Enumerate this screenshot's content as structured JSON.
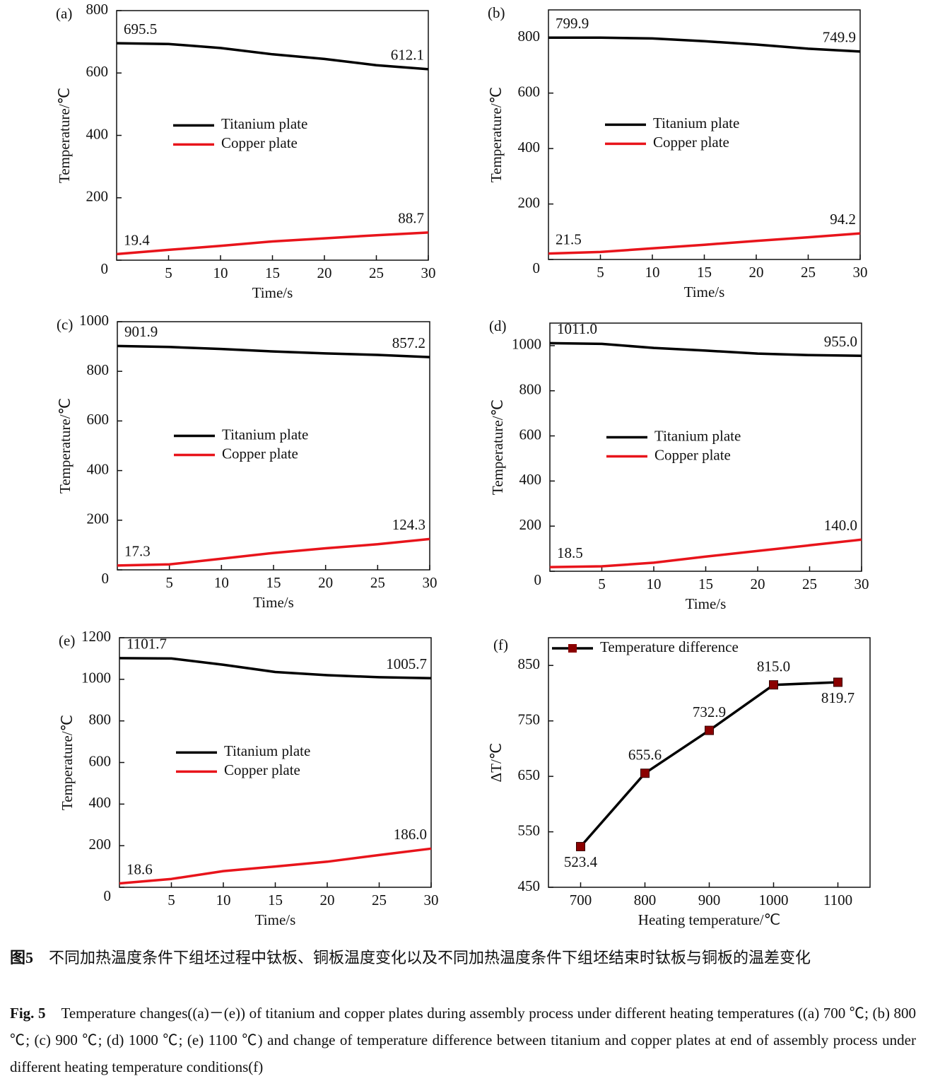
{
  "chart_data": [
    {
      "type": "line",
      "panel": "(a)",
      "x": [
        0,
        5,
        10,
        15,
        20,
        25,
        30
      ],
      "xlim": [
        0,
        30
      ],
      "xticks": [
        5,
        10,
        15,
        20,
        25,
        30
      ],
      "ylim": [
        0,
        800
      ],
      "yticks": [
        0,
        200,
        400,
        600,
        800
      ],
      "xlabel": "Time/s",
      "ylabel": "Temperature/℃",
      "legend": "upper center",
      "series": [
        {
          "name": "Titanium plate",
          "color": "#000000",
          "values": [
            695.5,
            693,
            680,
            660,
            645,
            625,
            612.1
          ],
          "value_labels": [
            "695.5",
            null,
            null,
            null,
            null,
            null,
            "612.1"
          ]
        },
        {
          "name": "Copper plate",
          "color": "#e8141b",
          "values": [
            19.4,
            33,
            46,
            60,
            70,
            80,
            88.7
          ],
          "value_labels": [
            "19.4",
            null,
            null,
            null,
            null,
            null,
            "88.7"
          ]
        }
      ]
    },
    {
      "type": "line",
      "panel": "(b)",
      "x": [
        0,
        5,
        10,
        15,
        20,
        25,
        30
      ],
      "xlim": [
        0,
        30
      ],
      "xticks": [
        5,
        10,
        15,
        20,
        25,
        30
      ],
      "ylim": [
        0,
        900
      ],
      "yticks": [
        0,
        200,
        400,
        600,
        800
      ],
      "xlabel": "Time/s",
      "ylabel": "Temperature/℃",
      "legend": "upper center",
      "series": [
        {
          "name": "Titanium plate",
          "color": "#000000",
          "values": [
            799.9,
            800,
            797,
            787,
            775,
            760,
            749.9
          ],
          "value_labels": [
            "799.9",
            null,
            null,
            null,
            null,
            null,
            "749.9"
          ]
        },
        {
          "name": "Copper plate",
          "color": "#e8141b",
          "values": [
            21.5,
            27,
            40,
            53,
            67,
            80,
            94.2
          ],
          "value_labels": [
            "21.5",
            null,
            null,
            null,
            null,
            null,
            "94.2"
          ]
        }
      ]
    },
    {
      "type": "line",
      "panel": "(c)",
      "x": [
        0,
        5,
        10,
        15,
        20,
        25,
        30
      ],
      "xlim": [
        0,
        30
      ],
      "xticks": [
        5,
        10,
        15,
        20,
        25,
        30
      ],
      "ylim": [
        0,
        1000
      ],
      "yticks": [
        0,
        200,
        400,
        600,
        800,
        1000
      ],
      "xlabel": "Time/s",
      "ylabel": "Temperature/℃",
      "legend": "upper center",
      "series": [
        {
          "name": "Titanium plate",
          "color": "#000000",
          "values": [
            901.9,
            898,
            890,
            880,
            872,
            866,
            857.2
          ],
          "value_labels": [
            "901.9",
            null,
            null,
            null,
            null,
            null,
            "857.2"
          ]
        },
        {
          "name": "Copper plate",
          "color": "#e8141b",
          "values": [
            17.3,
            22,
            45,
            68,
            87,
            103,
            124.3
          ],
          "value_labels": [
            "17.3",
            null,
            null,
            null,
            null,
            null,
            "124.3"
          ]
        }
      ]
    },
    {
      "type": "line",
      "panel": "(d)",
      "x": [
        0,
        5,
        10,
        15,
        20,
        25,
        30
      ],
      "xlim": [
        0,
        30
      ],
      "xticks": [
        5,
        10,
        15,
        20,
        25,
        30
      ],
      "ylim": [
        0,
        1100
      ],
      "yticks": [
        0,
        200,
        400,
        600,
        800,
        1000
      ],
      "xlabel": "Time/s",
      "ylabel": "Temperature/℃",
      "legend": "upper center",
      "series": [
        {
          "name": "Titanium plate",
          "color": "#000000",
          "values": [
            1011.0,
            1008,
            990,
            978,
            965,
            958,
            955.0
          ],
          "value_labels": [
            "1011.0",
            null,
            null,
            null,
            null,
            null,
            "955.0"
          ]
        },
        {
          "name": "Copper plate",
          "color": "#e8141b",
          "values": [
            18.5,
            22,
            38,
            65,
            90,
            115,
            140.0
          ],
          "value_labels": [
            "18.5",
            null,
            null,
            null,
            null,
            null,
            "140.0"
          ]
        }
      ]
    },
    {
      "type": "line",
      "panel": "(e)",
      "x": [
        0,
        5,
        10,
        15,
        20,
        25,
        30
      ],
      "xlim": [
        0,
        30
      ],
      "xticks": [
        5,
        10,
        15,
        20,
        25,
        30
      ],
      "ylim": [
        0,
        1200
      ],
      "yticks": [
        0,
        200,
        400,
        600,
        800,
        1000,
        1200
      ],
      "xlabel": "Time/s",
      "ylabel": "Temperature/℃",
      "legend": "upper center",
      "series": [
        {
          "name": "Titanium plate",
          "color": "#000000",
          "values": [
            1101.7,
            1100,
            1070,
            1035,
            1020,
            1010,
            1005.7
          ],
          "value_labels": [
            "1101.7",
            null,
            null,
            null,
            null,
            null,
            "1005.7"
          ]
        },
        {
          "name": "Copper plate",
          "color": "#e8141b",
          "values": [
            18.6,
            40,
            78,
            100,
            123,
            155,
            186.0
          ],
          "value_labels": [
            "18.6",
            null,
            null,
            null,
            null,
            null,
            "186.0"
          ]
        }
      ]
    },
    {
      "type": "line",
      "panel": "(f)",
      "x": [
        700,
        800,
        900,
        1000,
        1100
      ],
      "xlim": [
        650,
        1150
      ],
      "xticks": [
        700,
        800,
        900,
        1000,
        1100
      ],
      "ylim": [
        450,
        900
      ],
      "yticks": [
        450,
        550,
        650,
        750,
        850
      ],
      "xlabel": "Heating temperature/℃",
      "ylabel": "ΔT/℃",
      "legend": "upper left",
      "marker": "square",
      "marker_color": "#8b0000",
      "series": [
        {
          "name": "Temperature difference",
          "color": "#000000",
          "values": [
            523.4,
            655.6,
            732.9,
            815.0,
            819.7
          ],
          "value_labels": [
            "523.4",
            "655.6",
            "732.9",
            "815.0",
            "819.7"
          ]
        }
      ]
    }
  ],
  "caption": {
    "cn_label": "图5",
    "cn_text": "不同加热温度条件下组坯过程中钛板、铜板温度变化以及不同加热温度条件下组坯结束时钛板与铜板的温差变化",
    "en_label": "Fig. 5",
    "en_text": "Temperature changes((a)－(e)) of titanium and copper plates during assembly process under different heating temperatures ((a) 700 ℃; (b) 800 ℃; (c) 900 ℃; (d) 1000 ℃; (e) 1100 ℃) and change of temperature difference between titanium and copper plates at end of assembly process under different heating temperature conditions(f)"
  }
}
